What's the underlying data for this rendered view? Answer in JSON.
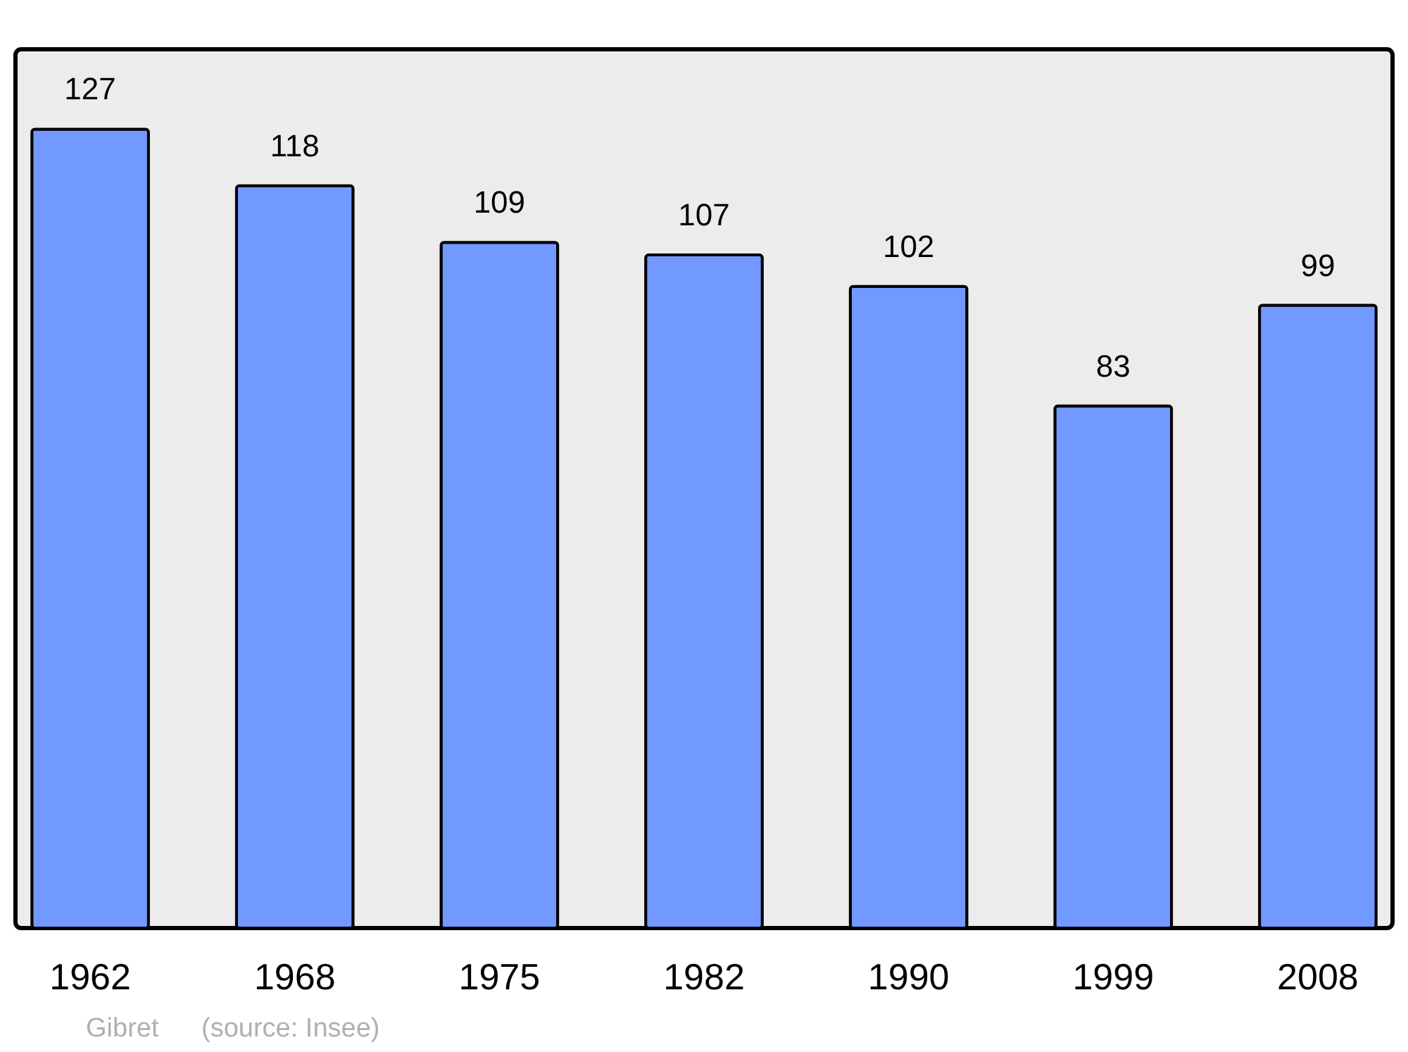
{
  "chart_data": {
    "type": "bar",
    "categories": [
      "1962",
      "1968",
      "1975",
      "1982",
      "1990",
      "1999",
      "2008"
    ],
    "values": [
      127,
      118,
      109,
      107,
      102,
      83,
      99
    ],
    "color": "#7299ff",
    "data_labels": true,
    "annotations": [
      "Gibret",
      "(source: Insee)"
    ]
  }
}
